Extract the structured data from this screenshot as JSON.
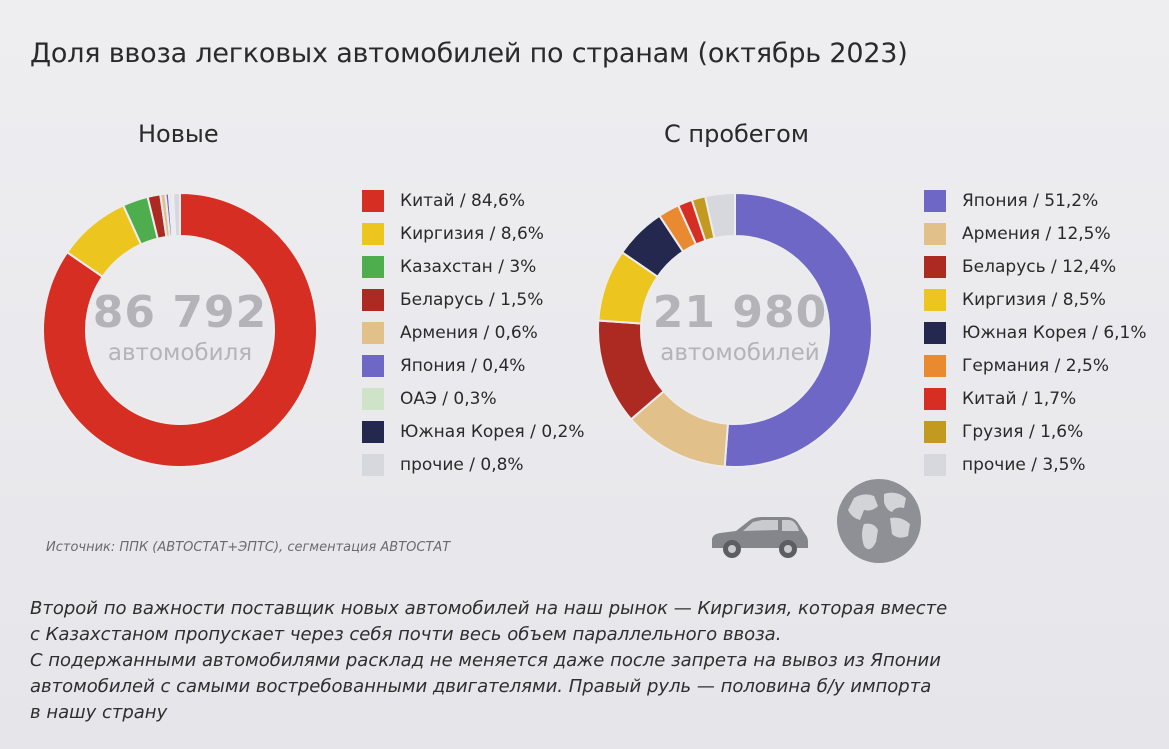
{
  "title": "Доля ввоза легковых автомобилей по странам (октябрь 2023)",
  "source": "Источник: ППК (АВТОСТАТ+ЭПТС), сегментация АВТОСТАТ",
  "notes": [
    "Второй по важности поставщик новых автомобилей на наш рынок — Киргизия, которая вместе",
    "с Казахстаном пропускает через себя почти весь объем параллельного ввоза.",
    "С подержанными автомобилями расклад не меняется даже после запрета на вывоз из Японии",
    "автомобилей с самыми востребованными двигателями. Правый руль — половина б/у импорта",
    "в нашу страну"
  ],
  "icons": {
    "car": "car-icon",
    "globe": "globe-icon"
  },
  "chart_data": [
    {
      "type": "pie",
      "subtitle": "Новые",
      "center_value": "86 792",
      "center_label": "автомобиля",
      "slices": [
        {
          "label": "Китай / 84,6%",
          "name": "Китай",
          "value": 84.6,
          "color": "#d62e22"
        },
        {
          "label": "Киргизия / 8,6%",
          "name": "Киргизия",
          "value": 8.6,
          "color": "#ecc51e"
        },
        {
          "label": "Казахстан / 3%",
          "name": "Казахстан",
          "value": 3.0,
          "color": "#4eae4e"
        },
        {
          "label": "Беларусь / 1,5%",
          "name": "Беларусь",
          "value": 1.5,
          "color": "#ad2a22"
        },
        {
          "label": "Армения / 0,6%",
          "name": "Армения",
          "value": 0.6,
          "color": "#e2c08a"
        },
        {
          "label": "Япония / 0,4%",
          "name": "Япония",
          "value": 0.4,
          "color": "#6f67c6"
        },
        {
          "label": "ОАЭ / 0,3%",
          "name": "ОАЭ",
          "value": 0.3,
          "color": "#cfe3c8"
        },
        {
          "label": "Южная Корея / 0,2%",
          "name": "Южная Корея",
          "value": 0.2,
          "color": "#24284e"
        },
        {
          "label": "прочие / 0,8%",
          "name": "прочие",
          "value": 0.8,
          "color": "#d6d8de"
        }
      ]
    },
    {
      "type": "pie",
      "subtitle": "С пробегом",
      "center_value": "21 980",
      "center_label": "автомобилей",
      "slices": [
        {
          "label": "Япония / 51,2%",
          "name": "Япония",
          "value": 51.2,
          "color": "#6f67c6"
        },
        {
          "label": "Армения / 12,5%",
          "name": "Армения",
          "value": 12.5,
          "color": "#e2c08a"
        },
        {
          "label": "Беларусь / 12,4%",
          "name": "Беларусь",
          "value": 12.4,
          "color": "#ad2a22"
        },
        {
          "label": "Киргизия / 8,5%",
          "name": "Киргизия",
          "value": 8.5,
          "color": "#ecc51e"
        },
        {
          "label": "Южная Корея / 6,1%",
          "name": "Южная Корея",
          "value": 6.1,
          "color": "#24284e"
        },
        {
          "label": "Германия / 2,5%",
          "name": "Германия",
          "value": 2.5,
          "color": "#e98a30"
        },
        {
          "label": "Китай / 1,7%",
          "name": "Китай",
          "value": 1.7,
          "color": "#d62e22"
        },
        {
          "label": "Грузия / 1,6%",
          "name": "Грузия",
          "value": 1.6,
          "color": "#c29a20"
        },
        {
          "label": "прочие / 3,5%",
          "name": "прочие",
          "value": 3.5,
          "color": "#d6d8de"
        }
      ]
    }
  ]
}
